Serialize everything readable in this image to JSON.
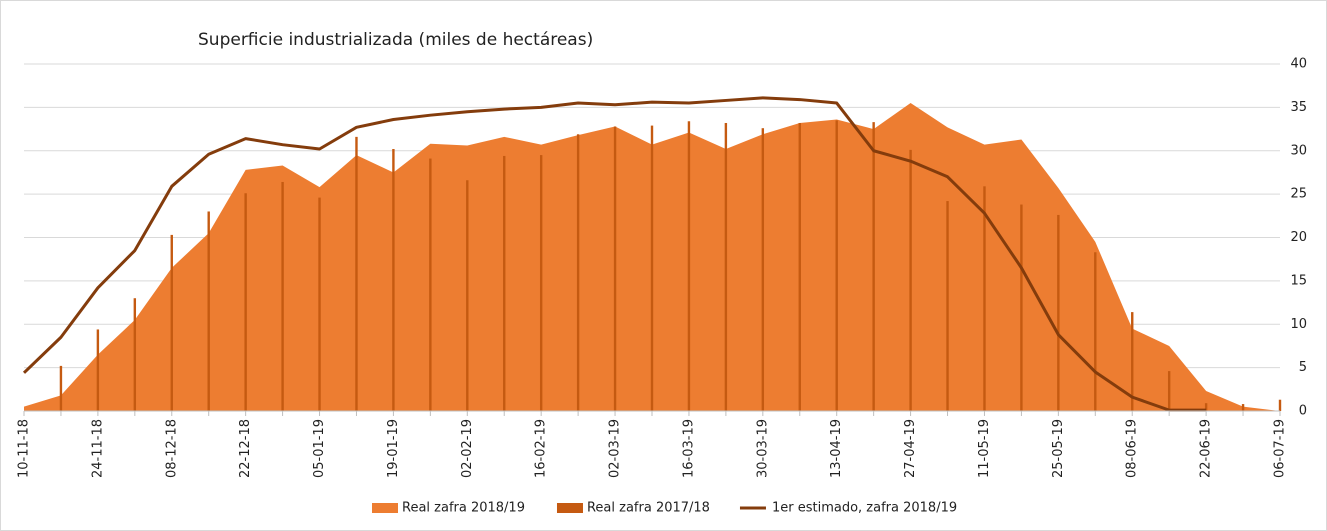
{
  "chart_data": {
    "type": "combo",
    "title": "Superficie industrializada (miles de hectáreas)",
    "categories": [
      "10-11-18",
      null,
      "24-11-18",
      null,
      "08-12-18",
      null,
      "22-12-18",
      null,
      "05-01-19",
      null,
      "19-01-19",
      null,
      "02-02-19",
      null,
      "16-02-19",
      null,
      "02-03-19",
      null,
      "16-03-19",
      null,
      "30-03-19",
      null,
      "13-04-19",
      null,
      "27-04-19",
      null,
      "11-05-19",
      null,
      "25-05-19",
      null,
      "08-06-19",
      null,
      "22-06-19",
      null,
      "06-07-19"
    ],
    "series": [
      {
        "name": "Real zafra 2018/19",
        "type": "area",
        "color": "#ed7d31",
        "values": [
          0.5,
          1.8,
          6.5,
          10.5,
          16.5,
          20.5,
          27.8,
          28.3,
          25.8,
          29.5,
          27.5,
          30.8,
          30.6,
          31.6,
          30.7,
          31.8,
          32.8,
          30.7,
          32.1,
          30.2,
          31.9,
          33.2,
          33.6,
          32.5,
          35.5,
          32.7,
          30.7,
          31.3,
          25.7,
          19.5,
          9.5,
          7.5,
          2.3,
          0.5,
          0
        ]
      },
      {
        "name": "Real zafra 2017/18",
        "type": "bar",
        "color": "#c55a11",
        "values": [
          0,
          5.2,
          9.4,
          13,
          20.3,
          23,
          25.1,
          26.4,
          24.6,
          31.6,
          30.2,
          29.1,
          26.6,
          29.4,
          29.5,
          31.9,
          32.8,
          32.9,
          33.4,
          33.2,
          32.6,
          33.2,
          33.5,
          33.3,
          30.1,
          24.2,
          25.9,
          23.8,
          22.6,
          18.3,
          11.4,
          4.6,
          0.9,
          0.8,
          1.3
        ]
      },
      {
        "name": "1er estimado, zafra 2018/19",
        "type": "line",
        "color": "#843c0c",
        "values": [
          4.4,
          8.5,
          14.2,
          18.5,
          25.9,
          29.6,
          31.4,
          30.7,
          30.2,
          32.7,
          33.6,
          34.1,
          34.5,
          34.8,
          35.0,
          35.5,
          35.3,
          35.6,
          35.5,
          35.8,
          36.1,
          35.9,
          35.5,
          30.0,
          28.8,
          27.0,
          22.8,
          16.5,
          8.8,
          4.5,
          1.6,
          0.1,
          0.1,
          null,
          null
        ]
      }
    ],
    "ylim": [
      0,
      40
    ],
    "yticks": [
      0,
      5,
      10,
      15,
      20,
      25,
      30,
      35,
      40
    ],
    "grid": true,
    "legend": "bottom"
  }
}
